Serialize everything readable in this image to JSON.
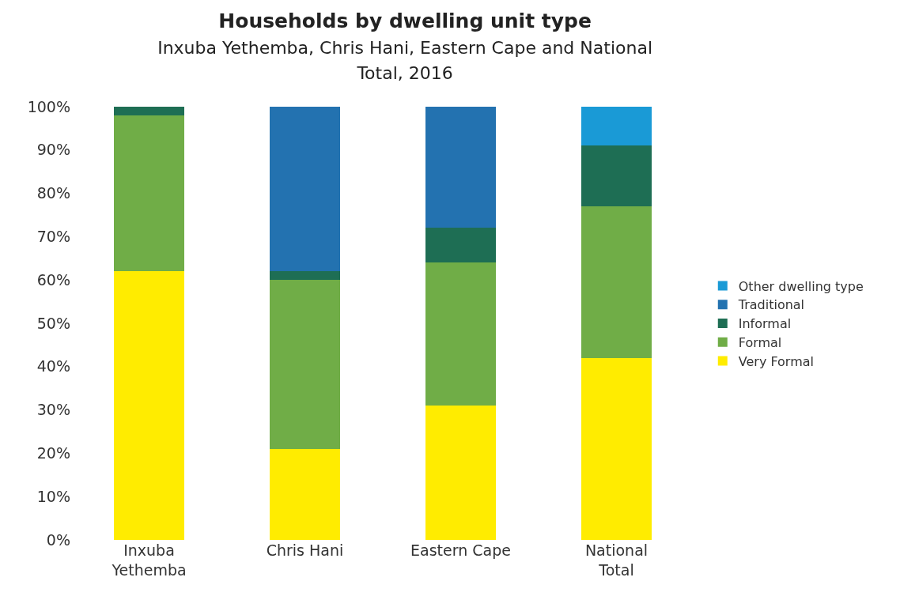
{
  "chart_data": {
    "type": "bar",
    "stacked": true,
    "title": "Households by dwelling unit type",
    "subtitle": "Inxuba Yethemba, Chris Hani, Eastern Cape and National Total, 2016",
    "categories": [
      "Inxuba Yethemba",
      "Chris Hani",
      "Eastern Cape",
      "National Total"
    ],
    "series": [
      {
        "name": "Very Formal",
        "color": "#ffec00",
        "values": [
          62,
          21,
          31,
          42
        ]
      },
      {
        "name": "Formal",
        "color": "#70ad47",
        "values": [
          36,
          39,
          33,
          35
        ]
      },
      {
        "name": "Informal",
        "color": "#1e6e54",
        "values": [
          2,
          2,
          8,
          14
        ]
      },
      {
        "name": "Traditional",
        "color": "#2372b0",
        "values": [
          0,
          38,
          28,
          0
        ]
      },
      {
        "name": "Other dwelling type",
        "color": "#1a9ad6",
        "values": [
          0,
          0,
          0,
          9
        ]
      }
    ],
    "ylim": [
      0,
      100
    ],
    "yticks": [
      {
        "value": 0,
        "label": "0%"
      },
      {
        "value": 10,
        "label": "10%"
      },
      {
        "value": 20,
        "label": "20%"
      },
      {
        "value": 30,
        "label": "30%"
      },
      {
        "value": 40,
        "label": "40%"
      },
      {
        "value": 50,
        "label": "50%"
      },
      {
        "value": 60,
        "label": "60%"
      },
      {
        "value": 70,
        "label": "70%"
      },
      {
        "value": 80,
        "label": "80%"
      },
      {
        "value": 90,
        "label": "90%"
      },
      {
        "value": 100,
        "label": "100%"
      }
    ],
    "grid": false,
    "legend": "right"
  }
}
